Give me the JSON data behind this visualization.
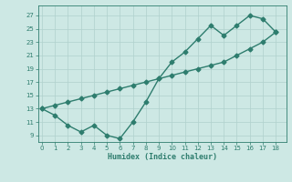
{
  "line1_x": [
    0,
    1,
    2,
    3,
    4,
    5,
    6,
    7,
    8,
    9,
    10,
    11,
    12,
    13,
    14,
    15,
    16,
    17,
    18
  ],
  "line1_y": [
    13,
    12,
    10.5,
    9.5,
    10.5,
    9,
    8.5,
    11,
    14,
    17.5,
    20,
    21.5,
    23.5,
    25.5,
    24,
    25.5,
    27,
    26.5,
    24.5
  ],
  "line2_x": [
    0,
    1,
    2,
    3,
    4,
    5,
    6,
    7,
    8,
    9,
    10,
    11,
    12,
    13,
    14,
    15,
    16,
    17,
    18
  ],
  "line2_y": [
    13,
    13.5,
    14,
    14.5,
    15,
    15.5,
    16,
    16.5,
    17,
    17.5,
    18,
    18.5,
    19,
    19.5,
    20,
    21,
    22,
    23,
    24.5
  ],
  "line_color": "#2e7d6e",
  "bg_color": "#cde8e4",
  "grid_color": "#b0d0cc",
  "xlabel": "Humidex (Indice chaleur)",
  "ylabel_ticks": [
    9,
    11,
    13,
    15,
    17,
    19,
    21,
    23,
    25,
    27
  ],
  "xticks": [
    0,
    1,
    2,
    3,
    4,
    5,
    6,
    7,
    8,
    9,
    10,
    11,
    12,
    13,
    14,
    15,
    16,
    17,
    18
  ],
  "ylim": [
    8.0,
    28.5
  ],
  "xlim": [
    -0.3,
    18.8
  ],
  "marker": "D",
  "markersize": 2.5,
  "linewidth": 1.0
}
